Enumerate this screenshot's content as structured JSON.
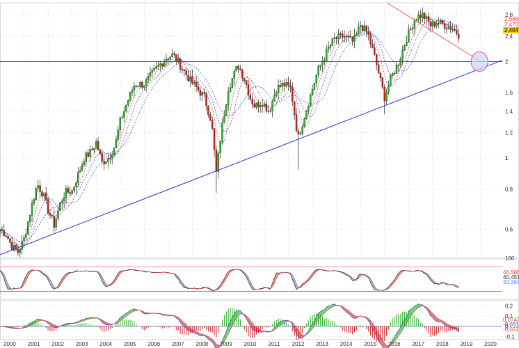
{
  "chart_data": [
    {
      "type": "candlestick",
      "title": "",
      "xlabel": "",
      "ylabel": "",
      "scale": "log",
      "x_ticks": [
        "2000",
        "2001",
        "2002",
        "2003",
        "2004",
        "2005",
        "2006",
        "2007",
        "2008",
        "2009",
        "2010",
        "2011",
        "2012",
        "2013",
        "2014",
        "2015",
        "2016",
        "2017",
        "2018",
        "2019",
        "2020"
      ],
      "y_ticks": [
        "0,6",
        "0,8",
        "1",
        "1,2",
        "1,4",
        "1,6",
        "2",
        "2,4",
        "2,8"
      ],
      "y_tick_values": [
        0.6,
        0.8,
        1.0,
        1.2,
        1.4,
        1.6,
        2.0,
        2.4,
        2.8
      ],
      "ylim": [
        0.49,
        3.05
      ],
      "xlim": [
        2000.0,
        2020.9
      ],
      "grid": true,
      "price_labels": {
        "high": {
          "text": "2,6669",
          "color": "#ff3b3b"
        },
        "mid": {
          "text": "2,4702",
          "color": "#ff3b3b"
        },
        "last": {
          "text": "2,404",
          "color": "#f2d000"
        }
      },
      "monthly_close_anchors": [
        {
          "t": 2000.0,
          "v": 0.6
        },
        {
          "t": 2000.25,
          "v": 0.58
        },
        {
          "t": 2000.5,
          "v": 0.53
        },
        {
          "t": 2000.75,
          "v": 0.51
        },
        {
          "t": 2001.0,
          "v": 0.56
        },
        {
          "t": 2001.3,
          "v": 0.7
        },
        {
          "t": 2001.55,
          "v": 0.83
        },
        {
          "t": 2001.8,
          "v": 0.77
        },
        {
          "t": 2002.0,
          "v": 0.69
        },
        {
          "t": 2002.25,
          "v": 0.62
        },
        {
          "t": 2002.5,
          "v": 0.72
        },
        {
          "t": 2002.7,
          "v": 0.78
        },
        {
          "t": 2003.0,
          "v": 0.79
        },
        {
          "t": 2003.5,
          "v": 1.0
        },
        {
          "t": 2003.8,
          "v": 1.05
        },
        {
          "t": 2004.0,
          "v": 1.12
        },
        {
          "t": 2004.25,
          "v": 0.97
        },
        {
          "t": 2004.5,
          "v": 1.0
        },
        {
          "t": 2004.8,
          "v": 1.1
        },
        {
          "t": 2005.0,
          "v": 1.3
        },
        {
          "t": 2005.3,
          "v": 1.5
        },
        {
          "t": 2005.6,
          "v": 1.7
        },
        {
          "t": 2006.0,
          "v": 1.7
        },
        {
          "t": 2006.5,
          "v": 1.9
        },
        {
          "t": 2006.9,
          "v": 2.05
        },
        {
          "t": 2007.2,
          "v": 2.1
        },
        {
          "t": 2007.5,
          "v": 1.95
        },
        {
          "t": 2007.9,
          "v": 1.75
        },
        {
          "t": 2008.2,
          "v": 1.65
        },
        {
          "t": 2008.5,
          "v": 1.55
        },
        {
          "t": 2008.8,
          "v": 1.3
        },
        {
          "t": 2009.0,
          "v": 0.9
        },
        {
          "t": 2009.2,
          "v": 1.2
        },
        {
          "t": 2009.5,
          "v": 1.65
        },
        {
          "t": 2009.9,
          "v": 1.95
        },
        {
          "t": 2010.2,
          "v": 1.75
        },
        {
          "t": 2010.4,
          "v": 1.55
        },
        {
          "t": 2010.6,
          "v": 1.45
        },
        {
          "t": 2010.9,
          "v": 1.5
        },
        {
          "t": 2011.2,
          "v": 1.4
        },
        {
          "t": 2011.5,
          "v": 1.65
        },
        {
          "t": 2011.8,
          "v": 1.7
        },
        {
          "t": 2012.1,
          "v": 1.65
        },
        {
          "t": 2012.4,
          "v": 1.15
        },
        {
          "t": 2012.6,
          "v": 1.3
        },
        {
          "t": 2012.9,
          "v": 1.55
        },
        {
          "t": 2013.2,
          "v": 1.85
        },
        {
          "t": 2013.6,
          "v": 2.15
        },
        {
          "t": 2013.9,
          "v": 2.35
        },
        {
          "t": 2014.3,
          "v": 2.4
        },
        {
          "t": 2014.7,
          "v": 2.3
        },
        {
          "t": 2015.0,
          "v": 2.6
        },
        {
          "t": 2015.3,
          "v": 2.45
        },
        {
          "t": 2015.6,
          "v": 2.05
        },
        {
          "t": 2016.0,
          "v": 1.55
        },
        {
          "t": 2016.3,
          "v": 1.8
        },
        {
          "t": 2016.6,
          "v": 2.0
        },
        {
          "t": 2016.9,
          "v": 2.35
        },
        {
          "t": 2017.3,
          "v": 2.75
        },
        {
          "t": 2017.6,
          "v": 2.8
        },
        {
          "t": 2017.9,
          "v": 2.6
        },
        {
          "t": 2018.2,
          "v": 2.65
        },
        {
          "t": 2018.5,
          "v": 2.6
        },
        {
          "t": 2018.8,
          "v": 2.55
        },
        {
          "t": 2019.1,
          "v": 2.42
        }
      ],
      "trendlines": [
        {
          "kind": "support",
          "color": "#3b3be0",
          "points": [
            {
              "t": 2000.0,
              "v": 0.5
            },
            {
              "t": 2020.9,
              "v": 2.02
            }
          ]
        },
        {
          "kind": "resistance",
          "color": "#ff6a6a",
          "points": [
            {
              "t": 2016.1,
              "v": 3.05
            },
            {
              "t": 2020.0,
              "v": 2.0
            }
          ]
        },
        {
          "kind": "horizontal",
          "color": "#333399",
          "points": [
            {
              "t": 2000.0,
              "v": 2.0
            },
            {
              "t": 2020.9,
              "v": 2.0
            }
          ]
        }
      ],
      "annotation": {
        "kind": "ellipse",
        "t": 2019.95,
        "v": 2.0,
        "color": "#ff5a7a",
        "fill": "#c8d8ff"
      }
    },
    {
      "type": "oscillator",
      "title": "",
      "y_ticks": [
        "100"
      ],
      "levels": [
        80,
        20
      ],
      "ylim": [
        0,
        100
      ],
      "value_labels": [
        {
          "text": "46,586",
          "color": "#ff3b3b"
        },
        {
          "text": "40,451",
          "color": "#333333"
        },
        {
          "text": "32,384",
          "color": "#5a8aff"
        }
      ]
    },
    {
      "type": "macd",
      "title": "",
      "y_ticks": [
        "0,2",
        "0,1",
        "0",
        "-0,1"
      ],
      "y_tick_values": [
        0.2,
        0.1,
        0.0,
        -0.1
      ],
      "ylim": [
        -0.13,
        0.25
      ],
      "value_labels": [
        {
          "text": "0,0743",
          "color": "#ff3b3b"
        },
        {
          "text": "-0,0318",
          "color": "#3b3be0"
        },
        {
          "text": "-0,022",
          "color": "#ff3b3b"
        }
      ]
    }
  ]
}
